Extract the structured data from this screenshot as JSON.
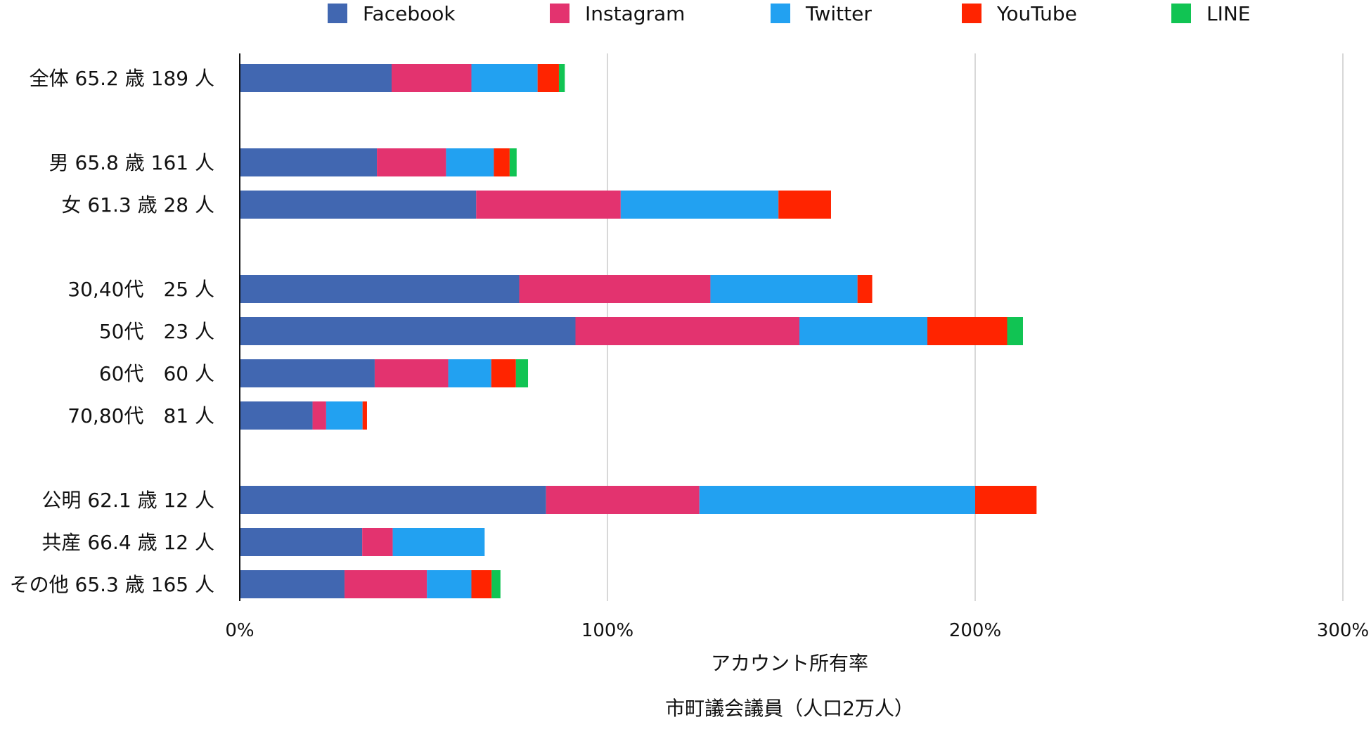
{
  "chart_data": {
    "type": "bar",
    "orientation": "horizontal",
    "stacked": true,
    "title": "",
    "xlabel": "アカウント所有率",
    "subtitle": "市町議会議員（人口2万人）",
    "ylabel": "",
    "xlim": [
      0,
      300
    ],
    "x_ticks": [
      "0%",
      "100%",
      "200%",
      "300%"
    ],
    "legend_position": "top",
    "grid": true,
    "categories": [
      "全体 65.2 歳 189 人",
      "男 65.8 歳 161 人",
      "女 61.3 歳 28 人",
      "30,40代　25 人",
      "50代　23 人",
      "60代　60 人",
      "70,80代　81 人",
      "公明 62.1 歳 12 人",
      "共産 66.4 歳 12 人",
      "その他 65.3 歳 165 人"
    ],
    "category_groups": [
      0,
      1,
      1,
      2,
      2,
      2,
      2,
      3,
      3,
      3
    ],
    "series": [
      {
        "name": "Facebook",
        "color": "#4167b1",
        "values": [
          41.3,
          37.3,
          64.3,
          76.0,
          91.3,
          36.7,
          19.8,
          83.3,
          33.3,
          28.5
        ]
      },
      {
        "name": "Instagram",
        "color": "#e3336f",
        "values": [
          21.7,
          18.8,
          39.3,
          52.0,
          60.9,
          20.0,
          3.7,
          41.7,
          8.3,
          22.4
        ]
      },
      {
        "name": "Twitter",
        "color": "#22a1f1",
        "values": [
          18.0,
          13.0,
          42.9,
          40.0,
          34.8,
          11.7,
          9.9,
          75.0,
          25.0,
          12.1
        ]
      },
      {
        "name": "YouTube",
        "color": "#ff2400",
        "values": [
          5.8,
          4.3,
          14.3,
          4.0,
          21.7,
          6.7,
          1.2,
          16.7,
          0.0,
          5.5
        ]
      },
      {
        "name": "LINE",
        "color": "#11c453",
        "values": [
          1.6,
          1.9,
          0.0,
          0.0,
          4.3,
          3.3,
          0.0,
          0.0,
          0.0,
          2.4
        ]
      }
    ]
  }
}
